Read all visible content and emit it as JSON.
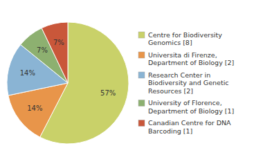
{
  "chart_data": {
    "type": "pie",
    "categories": [
      "Centre for Biodiversity\nGenomics [8]",
      "Universita di Firenze,\nDepartment of Biology [2]",
      "Research Center in\nBiodiversity and Genetic\nResources [2]",
      "University of Florence,\nDepartment of Biology [1]",
      "Canadian Centre for DNA\nBarcoding [1]"
    ],
    "values": [
      57,
      14,
      14,
      7,
      7
    ],
    "value_labels": [
      "57%",
      "14%",
      "14%",
      "7%",
      "7%"
    ],
    "colors": [
      "#c9d169",
      "#e8954a",
      "#8ab4d4",
      "#8db070",
      "#c9573a"
    ],
    "data_labels": true,
    "legend": "right"
  }
}
